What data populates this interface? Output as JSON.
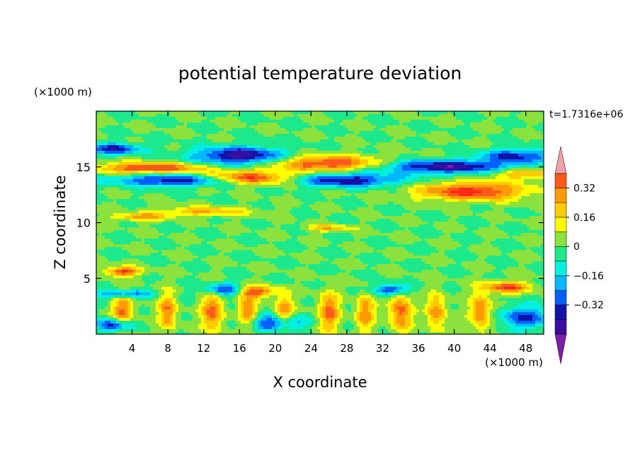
{
  "chart_data": {
    "type": "heatmap",
    "title": "potential temperature deviation",
    "xlabel": "X coordinate",
    "ylabel": "Z coordinate",
    "x_unit": "(×1000 m)",
    "y_unit": "(×1000 m)",
    "time_label": "t=1.7316e+06",
    "xlim": [
      0,
      50
    ],
    "ylim": [
      0,
      20
    ],
    "x_ticks": [
      4,
      8,
      12,
      16,
      20,
      24,
      28,
      32,
      36,
      40,
      44,
      48
    ],
    "y_ticks": [
      5,
      10,
      15
    ],
    "colorbar": {
      "levels": [
        -0.48,
        -0.4,
        -0.32,
        -0.24,
        -0.16,
        -0.08,
        0,
        0.08,
        0.16,
        0.24,
        0.32,
        0.4
      ],
      "tick_labels": [
        "0.32",
        "0.16",
        "0",
        "−0.16",
        "−0.32"
      ],
      "tick_values": [
        0.32,
        0.16,
        0,
        -0.16,
        -0.32
      ],
      "colors": [
        "#7c1fa6",
        "#3a0fa0",
        "#1212a8",
        "#0060ff",
        "#00b8ff",
        "#00f0e0",
        "#1ee88c",
        "#8ce23c",
        "#ffff00",
        "#ffcc00",
        "#ff9a00",
        "#ff5a1a",
        "#ff2a1a",
        "#f4a0a8"
      ]
    },
    "features": [
      {
        "x": 17,
        "z": 14.0,
        "rx": 5,
        "rz": 0.6,
        "v": 0.46
      },
      {
        "x": 26,
        "z": 15.3,
        "rx": 6,
        "rz": 0.7,
        "v": 0.44
      },
      {
        "x": 6,
        "z": 14.9,
        "rx": 6,
        "rz": 0.5,
        "v": 0.42
      },
      {
        "x": 42,
        "z": 12.8,
        "rx": 6,
        "rz": 0.8,
        "v": 0.44
      },
      {
        "x": 48,
        "z": 14.4,
        "rx": 4,
        "rz": 0.5,
        "v": 0.3
      },
      {
        "x": 16,
        "z": 16.0,
        "rx": 5,
        "rz": 0.8,
        "v": -0.46
      },
      {
        "x": 9,
        "z": 13.8,
        "rx": 7,
        "rz": 0.55,
        "v": -0.4
      },
      {
        "x": 28,
        "z": 13.8,
        "rx": 6,
        "rz": 0.6,
        "v": -0.4
      },
      {
        "x": 39,
        "z": 15.0,
        "rx": 8,
        "rz": 0.6,
        "v": -0.44
      },
      {
        "x": 2,
        "z": 16.6,
        "rx": 3,
        "rz": 0.5,
        "v": -0.36
      },
      {
        "x": 47,
        "z": 16.0,
        "rx": 4,
        "rz": 0.6,
        "v": -0.34
      },
      {
        "x": 12,
        "z": 11.0,
        "rx": 5,
        "rz": 0.4,
        "v": 0.26
      },
      {
        "x": 5,
        "z": 10.5,
        "rx": 3,
        "rz": 0.35,
        "v": 0.28
      },
      {
        "x": 26,
        "z": 9.5,
        "rx": 2.5,
        "rz": 0.3,
        "v": 0.24
      },
      {
        "x": 3,
        "z": 5.6,
        "rx": 2,
        "rz": 0.4,
        "v": 0.42
      },
      {
        "x": 46,
        "z": 4.2,
        "rx": 2.5,
        "rz": 0.5,
        "v": 0.4
      },
      {
        "x": 18,
        "z": 3.8,
        "rx": 2,
        "rz": 0.5,
        "v": 0.36
      },
      {
        "x": 3,
        "z": 3.6,
        "rx": 3,
        "rz": 0.4,
        "v": -0.3
      },
      {
        "x": 14,
        "z": 4.0,
        "rx": 2,
        "rz": 0.6,
        "v": -0.34
      },
      {
        "x": 33,
        "z": 4.0,
        "rx": 2,
        "rz": 0.5,
        "v": -0.38
      },
      {
        "x": 48,
        "z": 1.5,
        "rx": 3,
        "rz": 1.0,
        "v": -0.32
      },
      {
        "x": 2,
        "z": 0.8,
        "rx": 2,
        "rz": 0.6,
        "v": -0.4
      },
      {
        "x": 20,
        "z": 1.0,
        "rx": 3,
        "rz": 0.7,
        "v": -0.36
      },
      {
        "x": 3,
        "z": 2,
        "rx": 1.2,
        "rz": 1.6,
        "v": 0.34
      },
      {
        "x": 8,
        "z": 2,
        "rx": 1.0,
        "rz": 1.7,
        "v": 0.32
      },
      {
        "x": 13,
        "z": 2,
        "rx": 1.2,
        "rz": 1.8,
        "v": 0.36
      },
      {
        "x": 17,
        "z": 2,
        "rx": 1.0,
        "rz": 1.6,
        "v": 0.32
      },
      {
        "x": 21,
        "z": 2,
        "rx": 1.0,
        "rz": 1.5,
        "v": 0.3
      },
      {
        "x": 26,
        "z": 2,
        "rx": 1.2,
        "rz": 1.7,
        "v": 0.34
      },
      {
        "x": 30,
        "z": 2,
        "rx": 1.0,
        "rz": 1.6,
        "v": 0.32
      },
      {
        "x": 34,
        "z": 2,
        "rx": 1.2,
        "rz": 1.8,
        "v": 0.36
      },
      {
        "x": 38,
        "z": 2,
        "rx": 1.0,
        "rz": 1.6,
        "v": 0.32
      },
      {
        "x": 43,
        "z": 2,
        "rx": 1.2,
        "rz": 1.7,
        "v": 0.34
      }
    ]
  }
}
